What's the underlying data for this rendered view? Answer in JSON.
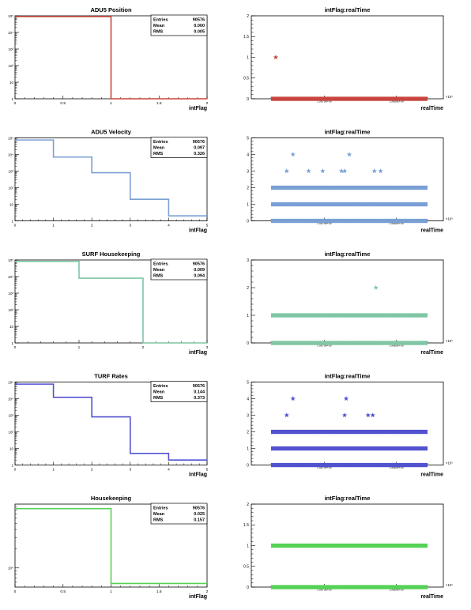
{
  "stats_labels": {
    "entries": "Entries",
    "mean": "Mean",
    "rms": "RMS"
  },
  "charts": [
    {
      "hist": {
        "title": "ADU5 Position",
        "xlabel": "intFlag",
        "color": "#c8463d",
        "xticks": [
          "0",
          "0.5",
          "1",
          "1.5",
          "2"
        ],
        "xlim": [
          0,
          2
        ],
        "ylog": true,
        "ydecades": [
          0,
          5
        ],
        "ytick_labels": [
          "1",
          "10",
          "10²",
          "10³",
          "10⁴",
          "10⁵"
        ],
        "bins": [
          0,
          1,
          2
        ],
        "values": [
          90575,
          1
        ],
        "stats": {
          "entries": "90576",
          "mean": "0.000",
          "rms": "0.005"
        }
      },
      "scatter": {
        "title": "intFlag:realTime",
        "xlabel": "realTime",
        "color": "#c8463d",
        "ylim": [
          0,
          2
        ],
        "ytick_labels": [
          "0",
          "0.5",
          "1",
          "1.5",
          "2"
        ],
        "yticks": [
          0,
          0.5,
          1,
          1.5,
          2
        ],
        "xticks": [
          "1.9679e+09",
          "1.9680e+09"
        ],
        "multiplier": "×10⁹",
        "bands": [
          0
        ],
        "points": [
          [
            0.03,
            1
          ]
        ]
      }
    },
    {
      "hist": {
        "title": "ADU5 Velocity",
        "xlabel": "intFlag",
        "color": "#7a9fd4",
        "xticks": [
          "0",
          "1",
          "2",
          "3",
          "4",
          "5"
        ],
        "xlim": [
          0,
          5
        ],
        "ylog": true,
        "ydecades": [
          0,
          5
        ],
        "ytick_labels": [
          "1",
          "10",
          "10²",
          "10³",
          "10⁴",
          "10⁵"
        ],
        "bins": [
          0,
          1,
          2,
          3,
          4,
          5
        ],
        "values": [
          75000,
          7000,
          800,
          20,
          2
        ],
        "stats": {
          "entries": "90576",
          "mean": "0.097",
          "rms": "0.326"
        }
      },
      "scatter": {
        "title": "intFlag:realTime",
        "xlabel": "realTime",
        "color": "#7a9fd4",
        "ylim": [
          0,
          5
        ],
        "ytick_labels": [
          "0",
          "1",
          "2",
          "3",
          "4",
          "5"
        ],
        "yticks": [
          0,
          1,
          2,
          3,
          4,
          5
        ],
        "xticks": [
          "1.9679e+09",
          "1.9680e+09"
        ],
        "multiplier": "×10⁹",
        "bands": [
          0,
          1,
          2
        ],
        "points": [
          [
            0.1,
            3
          ],
          [
            0.14,
            4
          ],
          [
            0.24,
            3
          ],
          [
            0.33,
            3
          ],
          [
            0.45,
            3
          ],
          [
            0.47,
            3
          ],
          [
            0.5,
            4
          ],
          [
            0.66,
            3
          ],
          [
            0.7,
            3
          ]
        ]
      }
    },
    {
      "hist": {
        "title": "SURF Housekeeping",
        "xlabel": "intFlag",
        "color": "#7fc6a4",
        "xticks": [
          "0",
          "1",
          "2",
          "3"
        ],
        "xlim": [
          0,
          3
        ],
        "ylog": true,
        "ydecades": [
          0,
          5
        ],
        "ytick_labels": [
          "1",
          "10",
          "10²",
          "10³",
          "10⁴",
          "10⁵"
        ],
        "bins": [
          0,
          1,
          2,
          3
        ],
        "values": [
          82000,
          8000,
          1
        ],
        "stats": {
          "entries": "90576",
          "mean": "0.009",
          "rms": "0.094"
        }
      },
      "scatter": {
        "title": "intFlag:realTime",
        "xlabel": "realTime",
        "color": "#7fc6a4",
        "ylim": [
          0,
          3
        ],
        "ytick_labels": [
          "0",
          "1",
          "2",
          "3"
        ],
        "yticks": [
          0,
          1,
          2,
          3
        ],
        "xticks": [
          "1.9679e+09",
          "1.9680e+09"
        ],
        "multiplier": "×10⁹",
        "bands": [
          0,
          1
        ],
        "points": [
          [
            0.67,
            2
          ]
        ]
      }
    },
    {
      "hist": {
        "title": "TURF Rates",
        "xlabel": "intFlag",
        "color": "#5252d0",
        "xticks": [
          "0",
          "1",
          "2",
          "3",
          "4",
          "5"
        ],
        "xlim": [
          0,
          5
        ],
        "ylog": true,
        "ydecades": [
          0,
          5
        ],
        "ytick_labels": [
          "1",
          "10",
          "10²",
          "10³",
          "10⁴",
          "10⁵"
        ],
        "bins": [
          0,
          1,
          2,
          3,
          4,
          5
        ],
        "values": [
          75000,
          12000,
          800,
          5,
          2
        ],
        "stats": {
          "entries": "90576",
          "mean": "0.144",
          "rms": "0.373"
        }
      },
      "scatter": {
        "title": "intFlag:realTime",
        "xlabel": "realTime",
        "color": "#5252d0",
        "ylim": [
          0,
          5
        ],
        "ytick_labels": [
          "0",
          "1",
          "2",
          "3",
          "4",
          "5"
        ],
        "yticks": [
          0,
          1,
          2,
          3,
          4,
          5
        ],
        "xticks": [
          "1.9679e+09",
          "1.9680e+09"
        ],
        "multiplier": "×10⁹",
        "bands": [
          0,
          1,
          2
        ],
        "points": [
          [
            0.1,
            3
          ],
          [
            0.14,
            4
          ],
          [
            0.47,
            3
          ],
          [
            0.48,
            4
          ],
          [
            0.62,
            3
          ],
          [
            0.65,
            3
          ]
        ]
      }
    },
    {
      "hist": {
        "title": "Housekeeping",
        "xlabel": "intFlag",
        "color": "#55d255",
        "xticks": [
          "0",
          "0.5",
          "1",
          "1.5",
          "2"
        ],
        "xlim": [
          0,
          2
        ],
        "ylog": true,
        "ydecades": [
          3.7,
          5
        ],
        "ytick_labels": [
          "10⁴"
        ],
        "ytick_decades": [
          4
        ],
        "bins": [
          0,
          1,
          2
        ],
        "values": [
          85000,
          5700
        ],
        "stats": {
          "entries": "90576",
          "mean": "0.025",
          "rms": "0.157"
        }
      },
      "scatter": {
        "title": "intFlag:realTime",
        "xlabel": "realTime",
        "color": "#55d255",
        "ylim": [
          0,
          2
        ],
        "ytick_labels": [
          "0",
          "0.5",
          "1",
          "1.5",
          "2"
        ],
        "yticks": [
          0,
          0.5,
          1,
          1.5,
          2
        ],
        "xticks": [
          "1.9679e+09",
          "1.9680e+09"
        ],
        "multiplier": "×10⁹",
        "bands": [
          0,
          1
        ],
        "points": []
      }
    }
  ]
}
